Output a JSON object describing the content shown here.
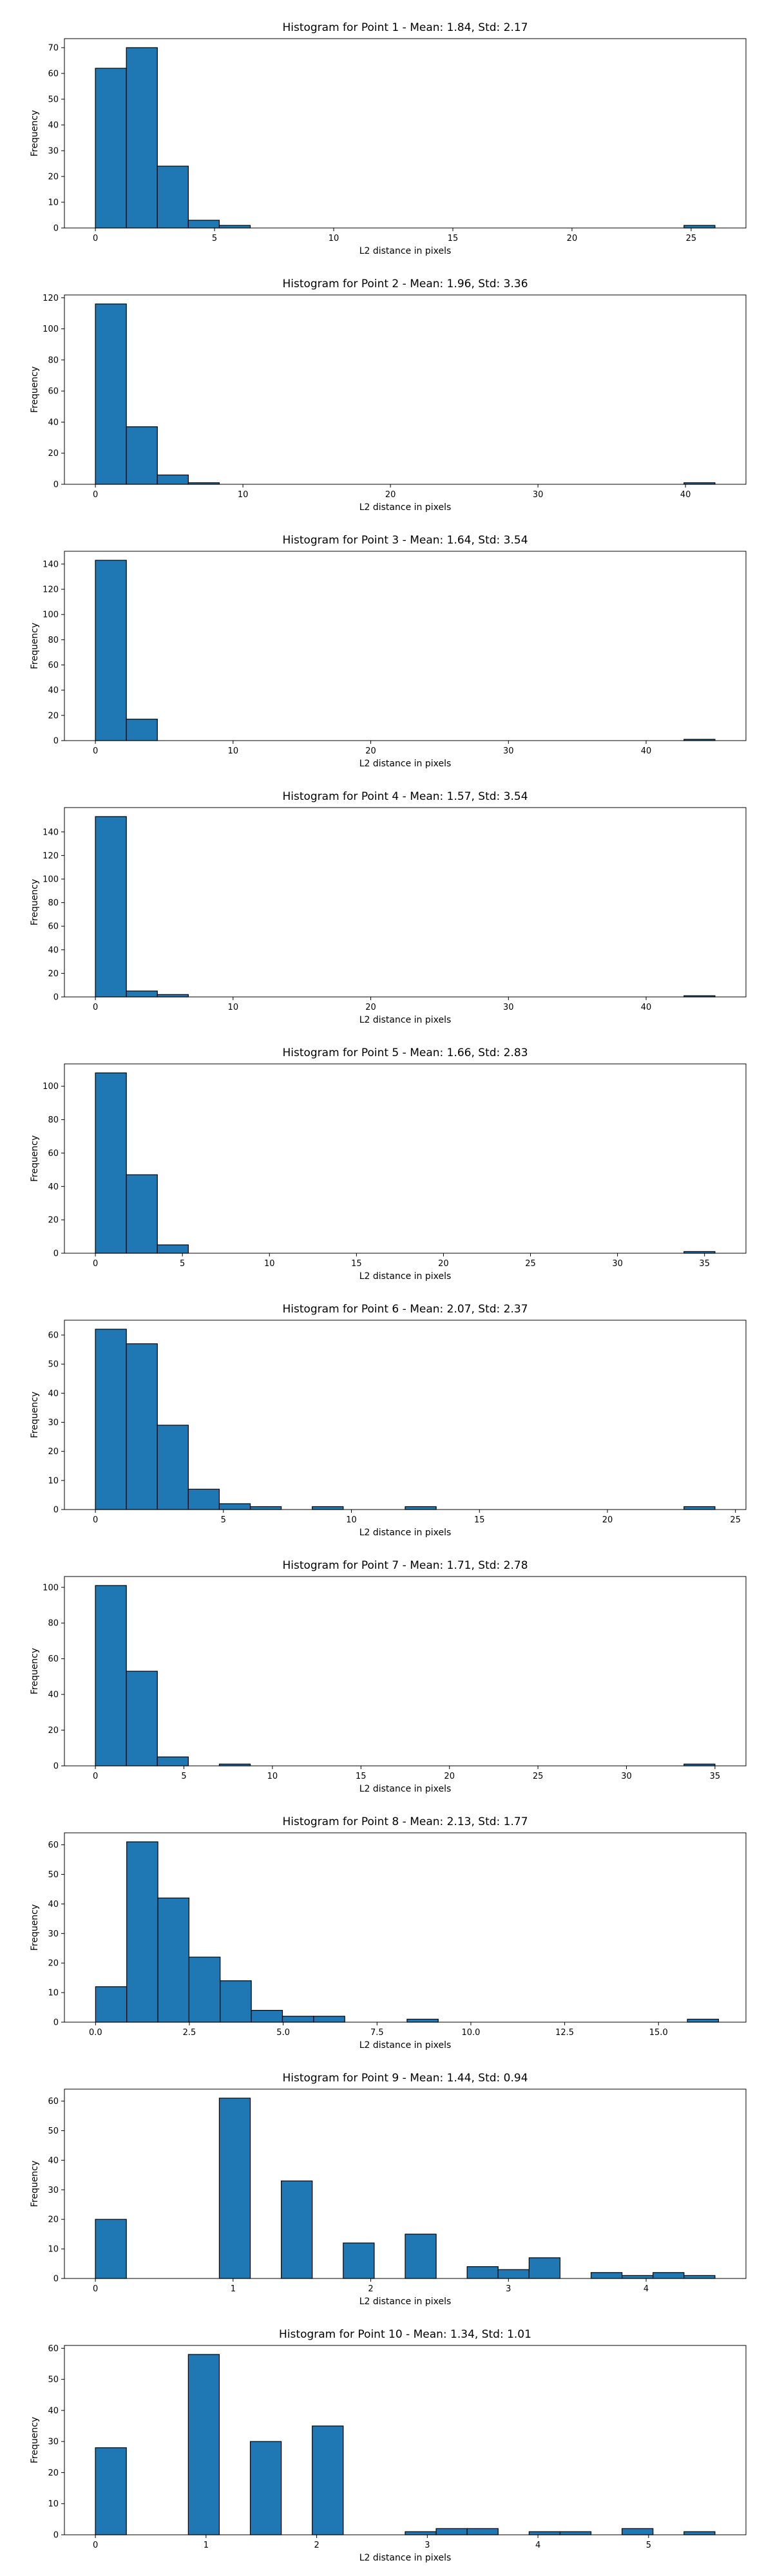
{
  "chart_data": [
    {
      "type": "bar",
      "title": "Histogram for Point 1 - Mean: 1.84, Std: 2.17",
      "xlabel": "L2 distance in pixels",
      "ylabel": "Frequency",
      "xlim": [
        -1.3,
        27.3
      ],
      "ylim": [
        0,
        73.5
      ],
      "xticks": [
        {
          "v": 0,
          "label": "0"
        },
        {
          "v": 5,
          "label": "5"
        },
        {
          "v": 10,
          "label": "10"
        },
        {
          "v": 15,
          "label": "15"
        },
        {
          "v": 20,
          "label": "20"
        },
        {
          "v": 25,
          "label": "25"
        }
      ],
      "yticks": [
        {
          "v": 0,
          "label": "0"
        },
        {
          "v": 10,
          "label": "10"
        },
        {
          "v": 20,
          "label": "20"
        },
        {
          "v": 30,
          "label": "30"
        },
        {
          "v": 40,
          "label": "40"
        },
        {
          "v": 50,
          "label": "50"
        },
        {
          "v": 60,
          "label": "60"
        },
        {
          "v": 70,
          "label": "70"
        }
      ],
      "bins": [
        {
          "x0": 0,
          "x1": 1.3,
          "count": 62
        },
        {
          "x0": 1.3,
          "x1": 2.6,
          "count": 70
        },
        {
          "x0": 2.6,
          "x1": 3.9,
          "count": 24
        },
        {
          "x0": 3.9,
          "x1": 5.2,
          "count": 3
        },
        {
          "x0": 5.2,
          "x1": 6.5,
          "count": 1
        },
        {
          "x0": 24.7,
          "x1": 26.0,
          "count": 1
        }
      ]
    },
    {
      "type": "bar",
      "title": "Histogram for Point 2 - Mean: 1.96, Std: 3.36",
      "xlabel": "L2 distance in pixels",
      "ylabel": "Frequency",
      "xlim": [
        -2.1,
        44.1
      ],
      "ylim": [
        0,
        121.8
      ],
      "xticks": [
        {
          "v": 0,
          "label": "0"
        },
        {
          "v": 10,
          "label": "10"
        },
        {
          "v": 20,
          "label": "20"
        },
        {
          "v": 30,
          "label": "30"
        },
        {
          "v": 40,
          "label": "40"
        }
      ],
      "yticks": [
        {
          "v": 0,
          "label": "0"
        },
        {
          "v": 20,
          "label": "20"
        },
        {
          "v": 40,
          "label": "40"
        },
        {
          "v": 60,
          "label": "60"
        },
        {
          "v": 80,
          "label": "80"
        },
        {
          "v": 100,
          "label": "100"
        },
        {
          "v": 120,
          "label": "120"
        }
      ],
      "bins": [
        {
          "x0": 0,
          "x1": 2.1,
          "count": 116
        },
        {
          "x0": 2.1,
          "x1": 4.2,
          "count": 37
        },
        {
          "x0": 4.2,
          "x1": 6.3,
          "count": 6
        },
        {
          "x0": 6.3,
          "x1": 8.4,
          "count": 1
        },
        {
          "x0": 39.9,
          "x1": 42.0,
          "count": 1
        }
      ]
    },
    {
      "type": "bar",
      "title": "Histogram for Point 3 - Mean: 1.64, Std: 3.54",
      "xlabel": "L2 distance in pixels",
      "ylabel": "Frequency",
      "xlim": [
        -2.25,
        47.25
      ],
      "ylim": [
        0,
        150.15
      ],
      "xticks": [
        {
          "v": 0,
          "label": "0"
        },
        {
          "v": 10,
          "label": "10"
        },
        {
          "v": 20,
          "label": "20"
        },
        {
          "v": 30,
          "label": "30"
        },
        {
          "v": 40,
          "label": "40"
        }
      ],
      "yticks": [
        {
          "v": 0,
          "label": "0"
        },
        {
          "v": 20,
          "label": "20"
        },
        {
          "v": 40,
          "label": "40"
        },
        {
          "v": 60,
          "label": "60"
        },
        {
          "v": 80,
          "label": "80"
        },
        {
          "v": 100,
          "label": "100"
        },
        {
          "v": 120,
          "label": "120"
        },
        {
          "v": 140,
          "label": "140"
        }
      ],
      "bins": [
        {
          "x0": 0,
          "x1": 2.25,
          "count": 143
        },
        {
          "x0": 2.25,
          "x1": 4.5,
          "count": 17
        },
        {
          "x0": 42.75,
          "x1": 45.0,
          "count": 1
        }
      ]
    },
    {
      "type": "bar",
      "title": "Histogram for Point 4 - Mean: 1.57, Std: 3.54",
      "xlabel": "L2 distance in pixels",
      "ylabel": "Frequency",
      "xlim": [
        -2.25,
        47.25
      ],
      "ylim": [
        0,
        160.65
      ],
      "xticks": [
        {
          "v": 0,
          "label": "0"
        },
        {
          "v": 10,
          "label": "10"
        },
        {
          "v": 20,
          "label": "20"
        },
        {
          "v": 30,
          "label": "30"
        },
        {
          "v": 40,
          "label": "40"
        }
      ],
      "yticks": [
        {
          "v": 0,
          "label": "0"
        },
        {
          "v": 20,
          "label": "20"
        },
        {
          "v": 40,
          "label": "40"
        },
        {
          "v": 60,
          "label": "60"
        },
        {
          "v": 80,
          "label": "80"
        },
        {
          "v": 100,
          "label": "100"
        },
        {
          "v": 120,
          "label": "120"
        },
        {
          "v": 140,
          "label": "140"
        }
      ],
      "bins": [
        {
          "x0": 0,
          "x1": 2.25,
          "count": 153
        },
        {
          "x0": 2.25,
          "x1": 4.5,
          "count": 5
        },
        {
          "x0": 4.5,
          "x1": 6.75,
          "count": 2
        },
        {
          "x0": 42.75,
          "x1": 45.0,
          "count": 1
        }
      ]
    },
    {
      "type": "bar",
      "title": "Histogram for Point 5 - Mean: 1.66, Std: 2.83",
      "xlabel": "L2 distance in pixels",
      "ylabel": "Frequency",
      "xlim": [
        -1.78,
        37.38
      ],
      "ylim": [
        0,
        113.4
      ],
      "xticks": [
        {
          "v": 0,
          "label": "0"
        },
        {
          "v": 5,
          "label": "5"
        },
        {
          "v": 10,
          "label": "10"
        },
        {
          "v": 15,
          "label": "15"
        },
        {
          "v": 20,
          "label": "20"
        },
        {
          "v": 25,
          "label": "25"
        },
        {
          "v": 30,
          "label": "30"
        },
        {
          "v": 35,
          "label": "35"
        }
      ],
      "yticks": [
        {
          "v": 0,
          "label": "0"
        },
        {
          "v": 20,
          "label": "20"
        },
        {
          "v": 40,
          "label": "40"
        },
        {
          "v": 60,
          "label": "60"
        },
        {
          "v": 80,
          "label": "80"
        },
        {
          "v": 100,
          "label": "100"
        }
      ],
      "bins": [
        {
          "x0": 0,
          "x1": 1.78,
          "count": 108
        },
        {
          "x0": 1.78,
          "x1": 3.56,
          "count": 47
        },
        {
          "x0": 3.56,
          "x1": 5.34,
          "count": 5
        },
        {
          "x0": 33.82,
          "x1": 35.6,
          "count": 1
        }
      ]
    },
    {
      "type": "bar",
      "title": "Histogram for Point 6 - Mean: 2.07, Std: 2.37",
      "xlabel": "L2 distance in pixels",
      "ylabel": "Frequency",
      "xlim": [
        -1.21,
        25.41
      ],
      "ylim": [
        0,
        65.1
      ],
      "xticks": [
        {
          "v": 0,
          "label": "0"
        },
        {
          "v": 5,
          "label": "5"
        },
        {
          "v": 10,
          "label": "10"
        },
        {
          "v": 15,
          "label": "15"
        },
        {
          "v": 20,
          "label": "20"
        },
        {
          "v": 25,
          "label": "25"
        }
      ],
      "yticks": [
        {
          "v": 0,
          "label": "0"
        },
        {
          "v": 10,
          "label": "10"
        },
        {
          "v": 20,
          "label": "20"
        },
        {
          "v": 30,
          "label": "30"
        },
        {
          "v": 40,
          "label": "40"
        },
        {
          "v": 50,
          "label": "50"
        },
        {
          "v": 60,
          "label": "60"
        }
      ],
      "bins": [
        {
          "x0": 0,
          "x1": 1.21,
          "count": 62
        },
        {
          "x0": 1.21,
          "x1": 2.42,
          "count": 57
        },
        {
          "x0": 2.42,
          "x1": 3.63,
          "count": 29
        },
        {
          "x0": 3.63,
          "x1": 4.84,
          "count": 7
        },
        {
          "x0": 4.84,
          "x1": 6.05,
          "count": 2
        },
        {
          "x0": 6.05,
          "x1": 7.26,
          "count": 1
        },
        {
          "x0": 8.47,
          "x1": 9.68,
          "count": 1
        },
        {
          "x0": 12.1,
          "x1": 13.31,
          "count": 1
        },
        {
          "x0": 22.99,
          "x1": 24.2,
          "count": 1
        }
      ]
    },
    {
      "type": "bar",
      "title": "Histogram for Point 7 - Mean: 1.71, Std: 2.78",
      "xlabel": "L2 distance in pixels",
      "ylabel": "Frequency",
      "xlim": [
        -1.75,
        36.75
      ],
      "ylim": [
        0,
        106.05
      ],
      "xticks": [
        {
          "v": 0,
          "label": "0"
        },
        {
          "v": 5,
          "label": "5"
        },
        {
          "v": 10,
          "label": "10"
        },
        {
          "v": 15,
          "label": "15"
        },
        {
          "v": 20,
          "label": "20"
        },
        {
          "v": 25,
          "label": "25"
        },
        {
          "v": 30,
          "label": "30"
        },
        {
          "v": 35,
          "label": "35"
        }
      ],
      "yticks": [
        {
          "v": 0,
          "label": "0"
        },
        {
          "v": 20,
          "label": "20"
        },
        {
          "v": 40,
          "label": "40"
        },
        {
          "v": 60,
          "label": "60"
        },
        {
          "v": 80,
          "label": "80"
        },
        {
          "v": 100,
          "label": "100"
        }
      ],
      "bins": [
        {
          "x0": 0,
          "x1": 1.75,
          "count": 101
        },
        {
          "x0": 1.75,
          "x1": 3.5,
          "count": 53
        },
        {
          "x0": 3.5,
          "x1": 5.25,
          "count": 5
        },
        {
          "x0": 7.0,
          "x1": 8.75,
          "count": 1
        },
        {
          "x0": 33.25,
          "x1": 35.0,
          "count": 1
        }
      ]
    },
    {
      "type": "bar",
      "title": "Histogram for Point 8 - Mean: 2.13, Std: 1.77",
      "xlabel": "L2 distance in pixels",
      "ylabel": "Frequency",
      "xlim": [
        -0.83,
        17.33
      ],
      "ylim": [
        0,
        64.05
      ],
      "xticks": [
        {
          "v": 0,
          "label": "0.0"
        },
        {
          "v": 2.5,
          "label": "2.5"
        },
        {
          "v": 5,
          "label": "5.0"
        },
        {
          "v": 7.5,
          "label": "7.5"
        },
        {
          "v": 10,
          "label": "10.0"
        },
        {
          "v": 12.5,
          "label": "12.5"
        },
        {
          "v": 15,
          "label": "15.0"
        }
      ],
      "yticks": [
        {
          "v": 0,
          "label": "0"
        },
        {
          "v": 10,
          "label": "10"
        },
        {
          "v": 20,
          "label": "20"
        },
        {
          "v": 30,
          "label": "30"
        },
        {
          "v": 40,
          "label": "40"
        },
        {
          "v": 50,
          "label": "50"
        },
        {
          "v": 60,
          "label": "60"
        }
      ],
      "bins": [
        {
          "x0": 0,
          "x1": 0.83,
          "count": 12
        },
        {
          "x0": 0.83,
          "x1": 1.66,
          "count": 61
        },
        {
          "x0": 1.66,
          "x1": 2.49,
          "count": 42
        },
        {
          "x0": 2.49,
          "x1": 3.32,
          "count": 22
        },
        {
          "x0": 3.32,
          "x1": 4.15,
          "count": 14
        },
        {
          "x0": 4.15,
          "x1": 4.98,
          "count": 4
        },
        {
          "x0": 4.98,
          "x1": 5.81,
          "count": 2
        },
        {
          "x0": 5.81,
          "x1": 6.64,
          "count": 2
        },
        {
          "x0": 8.3,
          "x1": 9.13,
          "count": 1
        },
        {
          "x0": 15.77,
          "x1": 16.6,
          "count": 1
        }
      ]
    },
    {
      "type": "bar",
      "title": "Histogram for Point 9 - Mean: 1.44, Std: 0.94",
      "xlabel": "L2 distance in pixels",
      "ylabel": "Frequency",
      "xlim": [
        -0.225,
        4.725
      ],
      "ylim": [
        0,
        64.05
      ],
      "xticks": [
        {
          "v": 0,
          "label": "0"
        },
        {
          "v": 1,
          "label": "1"
        },
        {
          "v": 2,
          "label": "2"
        },
        {
          "v": 3,
          "label": "3"
        },
        {
          "v": 4,
          "label": "4"
        }
      ],
      "yticks": [
        {
          "v": 0,
          "label": "0"
        },
        {
          "v": 10,
          "label": "10"
        },
        {
          "v": 20,
          "label": "20"
        },
        {
          "v": 30,
          "label": "30"
        },
        {
          "v": 40,
          "label": "40"
        },
        {
          "v": 50,
          "label": "50"
        },
        {
          "v": 60,
          "label": "60"
        }
      ],
      "bins": [
        {
          "x0": 0,
          "x1": 0.225,
          "count": 20
        },
        {
          "x0": 0.9,
          "x1": 1.125,
          "count": 61
        },
        {
          "x0": 1.35,
          "x1": 1.575,
          "count": 33
        },
        {
          "x0": 1.8,
          "x1": 2.025,
          "count": 12
        },
        {
          "x0": 2.25,
          "x1": 2.475,
          "count": 15
        },
        {
          "x0": 2.7,
          "x1": 2.925,
          "count": 4
        },
        {
          "x0": 2.925,
          "x1": 3.15,
          "count": 3
        },
        {
          "x0": 3.15,
          "x1": 3.375,
          "count": 7
        },
        {
          "x0": 3.6,
          "x1": 3.825,
          "count": 2
        },
        {
          "x0": 3.825,
          "x1": 4.05,
          "count": 1
        },
        {
          "x0": 4.05,
          "x1": 4.275,
          "count": 2
        },
        {
          "x0": 4.275,
          "x1": 4.5,
          "count": 1
        }
      ]
    },
    {
      "type": "bar",
      "title": "Histogram for Point 10 - Mean: 1.34, Std: 1.01",
      "xlabel": "L2 distance in pixels",
      "ylabel": "Frequency",
      "xlim": [
        -0.28,
        5.88
      ],
      "ylim": [
        0,
        60.9
      ],
      "xticks": [
        {
          "v": 0,
          "label": "0"
        },
        {
          "v": 1,
          "label": "1"
        },
        {
          "v": 2,
          "label": "2"
        },
        {
          "v": 3,
          "label": "3"
        },
        {
          "v": 4,
          "label": "4"
        },
        {
          "v": 5,
          "label": "5"
        }
      ],
      "yticks": [
        {
          "v": 0,
          "label": "0"
        },
        {
          "v": 10,
          "label": "10"
        },
        {
          "v": 20,
          "label": "20"
        },
        {
          "v": 30,
          "label": "30"
        },
        {
          "v": 40,
          "label": "40"
        },
        {
          "v": 50,
          "label": "50"
        },
        {
          "v": 60,
          "label": "60"
        }
      ],
      "bins": [
        {
          "x0": 0,
          "x1": 0.28,
          "count": 28
        },
        {
          "x0": 0.84,
          "x1": 1.12,
          "count": 58
        },
        {
          "x0": 1.4,
          "x1": 1.68,
          "count": 30
        },
        {
          "x0": 1.96,
          "x1": 2.24,
          "count": 35
        },
        {
          "x0": 2.8,
          "x1": 3.08,
          "count": 1
        },
        {
          "x0": 3.08,
          "x1": 3.36,
          "count": 2
        },
        {
          "x0": 3.36,
          "x1": 3.64,
          "count": 2
        },
        {
          "x0": 3.92,
          "x1": 4.2,
          "count": 1
        },
        {
          "x0": 4.2,
          "x1": 4.48,
          "count": 1
        },
        {
          "x0": 4.76,
          "x1": 5.04,
          "count": 2
        },
        {
          "x0": 5.32,
          "x1": 5.6,
          "count": 1
        }
      ]
    }
  ]
}
